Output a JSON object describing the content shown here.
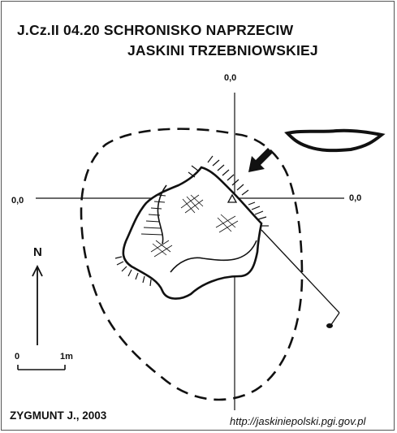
{
  "header": {
    "code_and_name_line1": "J.Cz.II 04.20  SCHRONISKO NAPRZECIW",
    "name_line2": "JASKINI TRZEBNIOWSKIEJ"
  },
  "axes": {
    "top_label": "0,0",
    "left_label": "0,0",
    "right_label": "0,0"
  },
  "north_arrow": {
    "label": "N"
  },
  "scale_bar": {
    "start_label": "0",
    "end_label": "1m"
  },
  "credits": {
    "author": "ZYGMUNT J., 2003",
    "source_url": "http://jaskiniepolski.pgi.gov.pl"
  },
  "colors": {
    "ink": "#111111",
    "background": "#ffffff"
  }
}
